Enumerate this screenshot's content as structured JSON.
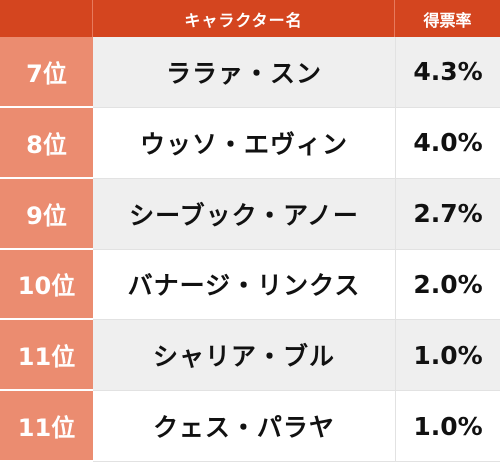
{
  "header": {
    "rank": "",
    "name": "キャラクター名",
    "rate": "得票率"
  },
  "rows": [
    {
      "rank": "7位",
      "name": "ララァ・スン",
      "rate": "4.3%"
    },
    {
      "rank": "8位",
      "name": "ウッソ・エヴィン",
      "rate": "4.0%"
    },
    {
      "rank": "9位",
      "name": "シーブック・アノー",
      "rate": "2.7%"
    },
    {
      "rank": "10位",
      "name": "バナージ・リンクス",
      "rate": "2.0%"
    },
    {
      "rank": "11位",
      "name": "シャリア・ブル",
      "rate": "1.0%"
    },
    {
      "rank": "11位",
      "name": "クェス・パラヤ",
      "rate": "1.0%"
    }
  ],
  "colors": {
    "header_bg": "#d4451f",
    "rank_bg": "#eb8c70",
    "row_shade": "#efefef"
  }
}
